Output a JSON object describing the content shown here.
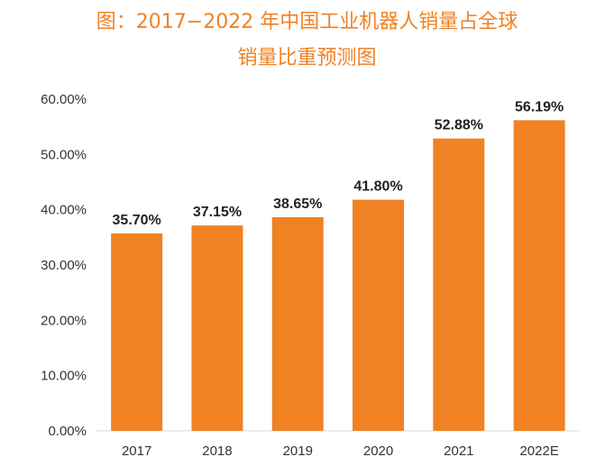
{
  "chart_data": {
    "type": "bar",
    "title": "图：2017−2022 年中国工业机器人销量占全球",
    "subtitle": "销量比重预测图",
    "categories": [
      "2017",
      "2018",
      "2019",
      "2020",
      "2021",
      "2022E"
    ],
    "values": [
      35.7,
      37.15,
      38.65,
      41.8,
      52.88,
      56.19
    ],
    "data_labels": [
      "35.70%",
      "37.15%",
      "38.65%",
      "41.80%",
      "52.88%",
      "56.19%"
    ],
    "y_ticks": [
      0,
      10,
      20,
      30,
      40,
      50,
      60
    ],
    "y_tick_labels": [
      "0.00%",
      "10.00%",
      "20.00%",
      "30.00%",
      "40.00%",
      "50.00%",
      "60.00%"
    ],
    "ylim": [
      0,
      60
    ],
    "xlabel": "",
    "ylabel": "",
    "grid": false,
    "legend": "none",
    "colors": {
      "bar": "#F08223",
      "title": "#F08223",
      "axis": "#D9D9D9"
    }
  }
}
